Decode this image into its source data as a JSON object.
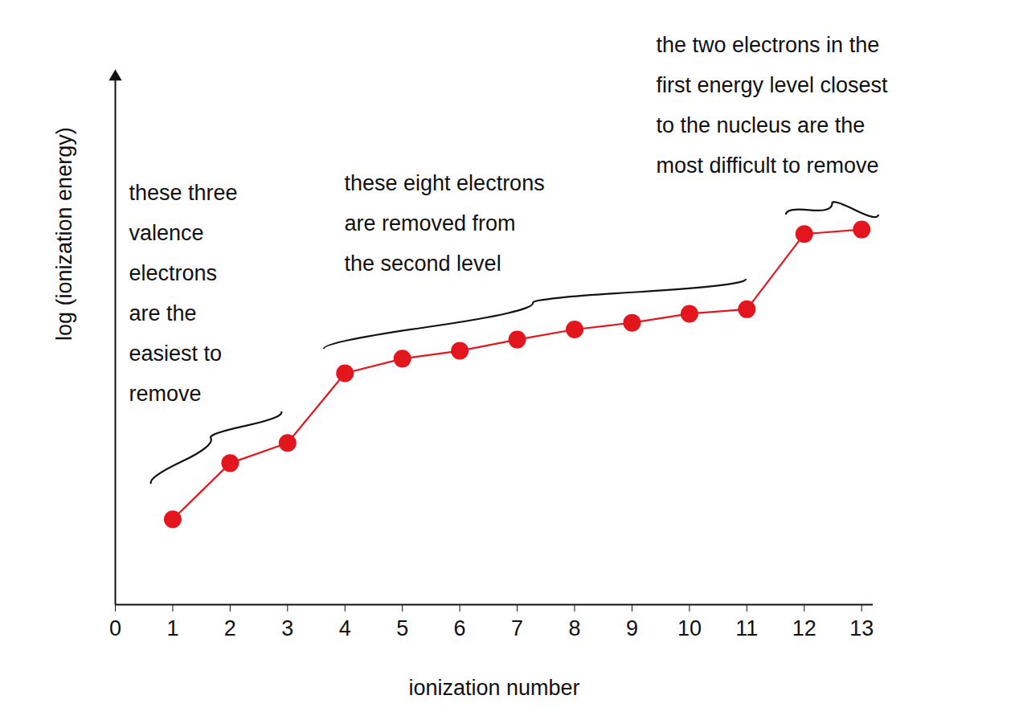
{
  "chart_data": {
    "type": "line",
    "x": [
      1,
      2,
      3,
      4,
      5,
      6,
      7,
      8,
      9,
      10,
      11,
      12,
      13
    ],
    "values": [
      2.76,
      3.26,
      3.44,
      4.06,
      4.19,
      4.26,
      4.36,
      4.45,
      4.51,
      4.59,
      4.63,
      5.3,
      5.34
    ],
    "color": "#e3161e",
    "marker": "circle",
    "xlabel": "ionization number",
    "ylabel": "log (ionization energy)",
    "xlim": [
      0,
      13.2
    ],
    "xticks": [
      0,
      1,
      2,
      3,
      4,
      5,
      6,
      7,
      8,
      9,
      10,
      11,
      12,
      13
    ],
    "ylim": [
      2,
      6.7
    ],
    "yticks": [],
    "tick_labels": "x",
    "annotations": [
      "these three\nvalence\nelectrons\nare the\neasiest to\nremove",
      "these eight electrons\nare removed from\nthe second level",
      "the two electrons in the\nfirst energy level closest\nto the nucleus are the\nmost difficult to remove"
    ]
  }
}
